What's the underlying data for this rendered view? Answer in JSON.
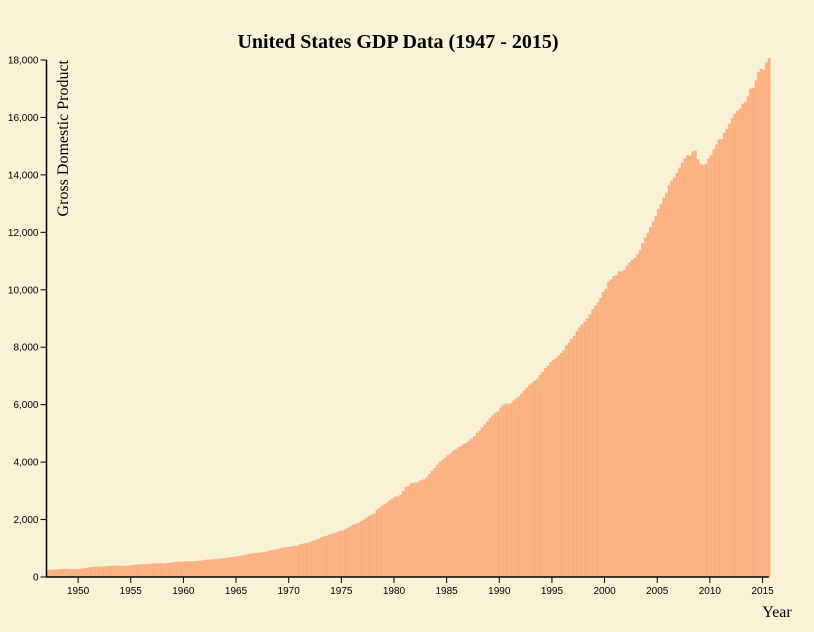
{
  "chart_data": {
    "type": "bar",
    "title": "United States GDP Data (1947 - 2015)",
    "xlabel": "Year",
    "ylabel": "Gross Domestic Product",
    "ylim": [
      0,
      18000
    ],
    "xlim": [
      1947,
      2015.6
    ],
    "y_ticks": [
      "0",
      "2,000",
      "4,000",
      "6,000",
      "8,000",
      "10,000",
      "12,000",
      "14,000",
      "16,000",
      "18,000"
    ],
    "x_ticks": [
      "1950",
      "1955",
      "1960",
      "1965",
      "1970",
      "1975",
      "1980",
      "1985",
      "1990",
      "1995",
      "2000",
      "2005",
      "2010",
      "2015"
    ],
    "bar_color": "#fdb07f",
    "background": "#f9f2d7",
    "grid": false,
    "quarterly_values": {
      "1947": [
        243.1,
        246.3,
        250.1,
        260.3
      ],
      "1948": [
        266.2,
        272.9,
        279.5,
        280.7
      ],
      "1949": [
        275.4,
        271.7,
        273.3,
        271.0
      ],
      "1950": [
        281.2,
        290.7,
        308.5,
        320.3
      ],
      "1951": [
        336.4,
        344.5,
        351.8,
        356.6
      ],
      "1952": [
        360.2,
        361.4,
        368.1,
        381.2
      ],
      "1953": [
        388.5,
        392.3,
        391.7,
        386.5
      ],
      "1954": [
        385.9,
        386.7,
        391.6,
        400.3
      ],
      "1955": [
        413.8,
        422.2,
        430.9,
        437.8
      ],
      "1956": [
        440.5,
        446.8,
        452.0,
        461.3
      ],
      "1957": [
        470.6,
        472.8,
        480.3,
        475.7
      ],
      "1958": [
        468.4,
        472.8,
        486.7,
        500.4
      ],
      "1959": [
        511.1,
        524.2,
        525.2,
        529.3
      ],
      "1960": [
        543.3,
        542.7,
        546.0,
        541.1
      ],
      "1961": [
        545.9,
        557.4,
        568.2,
        581.6
      ],
      "1962": [
        595.2,
        602.6,
        609.6,
        613.1
      ],
      "1963": [
        622.7,
        631.8,
        645.0,
        654.8
      ],
      "1964": [
        671.1,
        680.8,
        692.8,
        698.4
      ],
      "1965": [
        719.2,
        732.4,
        750.2,
        773.1
      ],
      "1966": [
        797.3,
        807.2,
        820.8,
        834.9
      ],
      "1967": [
        846.0,
        851.1,
        866.6,
        883.2
      ],
      "1968": [
        911.1,
        936.3,
        952.3,
        970.1
      ],
      "1969": [
        995.4,
        1011.4,
        1032.0,
        1040.7
      ],
      "1970": [
        1053.5,
        1070.1,
        1088.5,
        1091.5
      ],
      "1971": [
        1137.8,
        1159.4,
        1180.3,
        1193.6
      ],
      "1972": [
        1233.8,
        1270.1,
        1293.8,
        1332.0
      ],
      "1973": [
        1380.7,
        1417.6,
        1436.8,
        1479.1
      ],
      "1974": [
        1494.7,
        1534.2,
        1563.4,
        1603.0
      ],
      "1975": [
        1619.6,
        1656.4,
        1713.8,
        1765.9
      ],
      "1976": [
        1824.5,
        1856.9,
        1890.5,
        1938.4
      ],
      "1977": [
        1992.5,
        2060.2,
        2122.4,
        2168.7
      ],
      "1978": [
        2208.7,
        2336.6,
        2398.9,
        2482.2
      ],
      "1979": [
        2531.6,
        2595.9,
        2670.4,
        2730.7
      ],
      "1980": [
        2796.5,
        2799.9,
        2860.0,
        2993.5
      ],
      "1981": [
        3131.8,
        3167.3,
        3261.2,
        3283.5
      ],
      "1982": [
        3273.8,
        3331.3,
        3367.1,
        3407.8
      ],
      "1983": [
        3480.3,
        3583.8,
        3692.3,
        3796.1
      ],
      "1984": [
        3912.8,
        4015.0,
        4087.4,
        4147.6
      ],
      "1985": [
        4237.0,
        4302.3,
        4394.6,
        4453.1
      ],
      "1986": [
        4516.3,
        4555.2,
        4619.6,
        4669.4
      ],
      "1987": [
        4736.2,
        4821.5,
        4900.5,
        5022.7
      ],
      "1988": [
        5090.6,
        5207.7,
        5299.5,
        5412.7
      ],
      "1989": [
        5527.4,
        5628.4,
        5711.6,
        5763.4
      ],
      "1990": [
        5890.8,
        5974.7,
        6029.5,
        6023.3
      ],
      "1991": [
        6054.9,
        6143.6,
        6218.4,
        6279.3
      ],
      "1992": [
        6380.8,
        6492.3,
        6586.5,
        6697.6
      ],
      "1993": [
        6748.2,
        6829.6,
        6904.2,
        7032.8
      ],
      "1994": [
        7136.3,
        7269.8,
        7352.3,
        7476.7
      ],
      "1995": [
        7545.3,
        7604.9,
        7706.5,
        7799.5
      ],
      "1996": [
        7893.1,
        8061.5,
        8159.0,
        8287.1
      ],
      "1997": [
        8402.1,
        8551.9,
        8691.8,
        8788.3
      ],
      "1998": [
        8889.7,
        8994.7,
        9146.5,
        9325.7
      ],
      "1999": [
        9447.1,
        9557.0,
        9712.3,
        9926.1
      ],
      "2000": [
        10031.0,
        10278.3,
        10357.4,
        10472.3
      ],
      "2001": [
        10508.1,
        10638.4,
        10639.5,
        10701.3
      ],
      "2002": [
        10834.4,
        10934.8,
        11037.1,
        11103.8
      ],
      "2003": [
        11230.1,
        11370.7,
        11625.1,
        11816.8
      ],
      "2004": [
        11988.4,
        12181.4,
        12367.7,
        12562.2
      ],
      "2005": [
        12813.7,
        12974.1,
        13205.4,
        13381.6
      ],
      "2006": [
        13648.9,
        13799.8,
        13908.5,
        14066.4
      ],
      "2007": [
        14233.2,
        14422.3,
        14569.7,
        14685.3
      ],
      "2008": [
        14668.4,
        14813.0,
        14843.0,
        14549.9
      ],
      "2009": [
        14383.9,
        14340.4,
        14384.1,
        14566.5
      ],
      "2010": [
        14681.1,
        14888.6,
        15057.7,
        15230.2
      ],
      "2011": [
        15238.4,
        15460.9,
        15587.1,
        15785.3
      ],
      "2012": [
        15973.9,
        16121.9,
        16227.9,
        16297.3
      ],
      "2013": [
        16475.4,
        16541.4,
        16749.3,
        16999.9
      ],
      "2014": [
        17025.2,
        17285.6,
        17569.4,
        17692.2
      ],
      "2015": [
        17649.3,
        17913.7,
        18064.7
      ]
    }
  }
}
